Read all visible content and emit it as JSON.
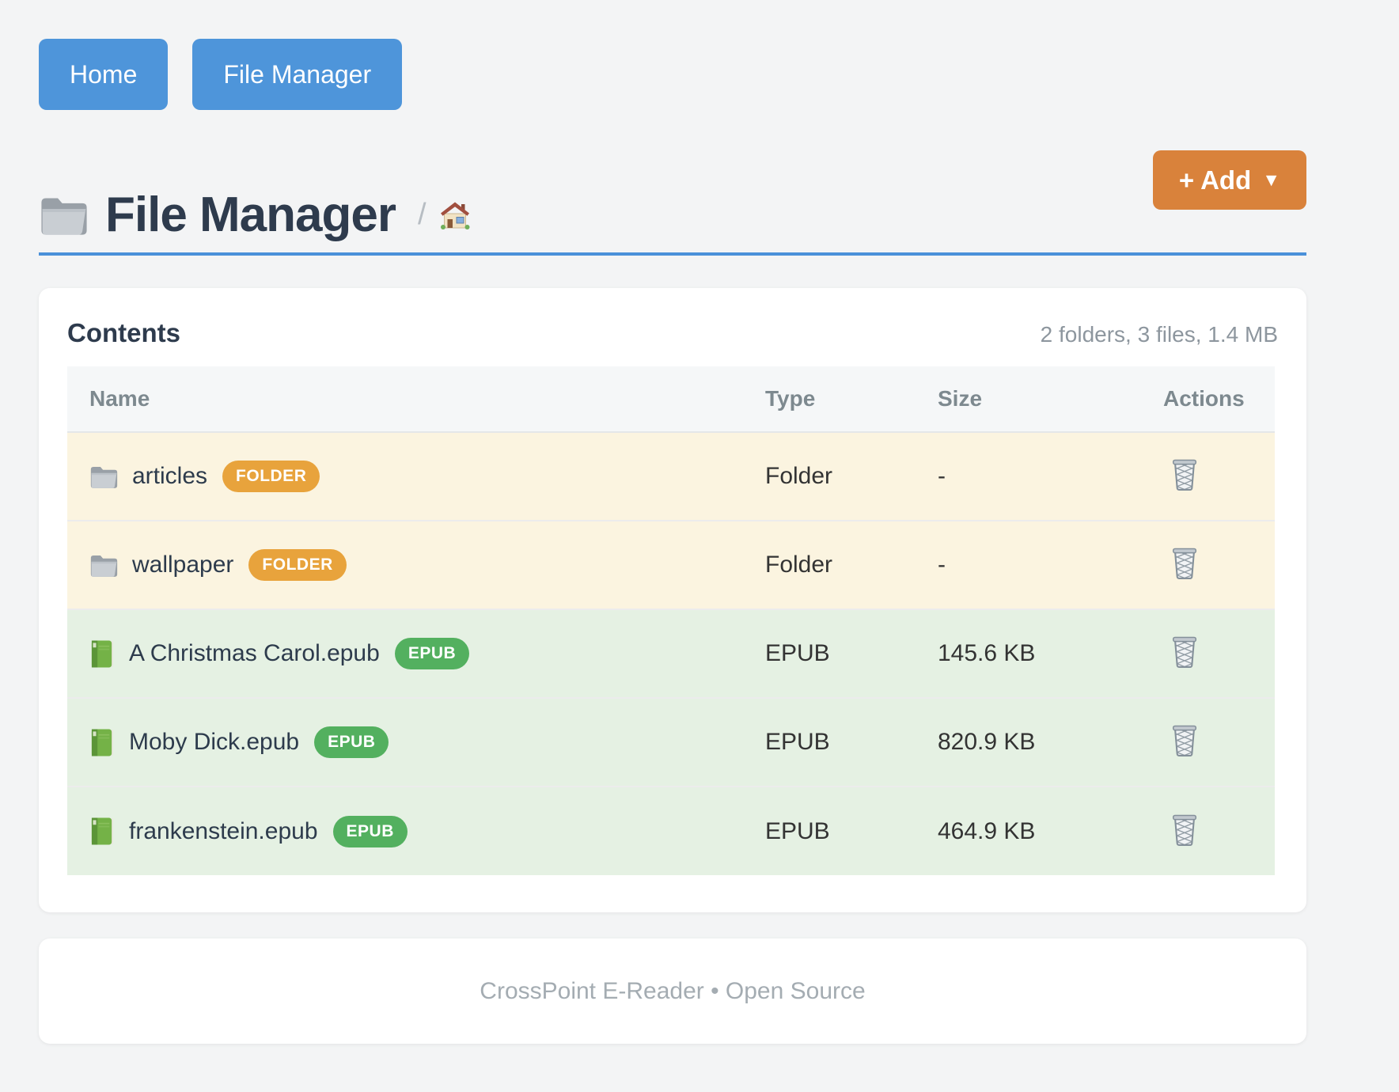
{
  "nav": {
    "buttons": [
      {
        "label": "Home"
      },
      {
        "label": "File Manager"
      }
    ]
  },
  "header": {
    "title": "File Manager",
    "breadcrumb_separator": "/",
    "add_button": {
      "label": "+ Add",
      "caret": "▼"
    }
  },
  "contents": {
    "heading": "Contents",
    "summary": "2 folders, 3 files, 1.4 MB",
    "table": {
      "columns": [
        "Name",
        "Type",
        "Size",
        "Actions"
      ],
      "rows": [
        {
          "name": "articles",
          "badge": "FOLDER",
          "type": "Folder",
          "size": "-",
          "kind": "folder"
        },
        {
          "name": "wallpaper",
          "badge": "FOLDER",
          "type": "Folder",
          "size": "-",
          "kind": "folder"
        },
        {
          "name": "A Christmas Carol.epub",
          "badge": "EPUB",
          "type": "EPUB",
          "size": "145.6 KB",
          "kind": "epub"
        },
        {
          "name": "Moby Dick.epub",
          "badge": "EPUB",
          "type": "EPUB",
          "size": "820.9 KB",
          "kind": "epub"
        },
        {
          "name": "frankenstein.epub",
          "badge": "EPUB",
          "type": "EPUB",
          "size": "464.9 KB",
          "kind": "epub"
        }
      ]
    }
  },
  "footer": {
    "text": "CrossPoint E-Reader • Open Source"
  },
  "colors": {
    "accent_blue": "#4a90d9",
    "button_blue": "#4e95da",
    "add_orange": "#d9823b",
    "folder_badge_orange": "#e8a33c",
    "epub_badge_green": "#53b05f",
    "folder_row_bg": "#fbf4e0",
    "epub_row_bg": "#e5f1e3",
    "heading_dark": "#2e3b4d",
    "muted_gray": "#8d969e"
  }
}
